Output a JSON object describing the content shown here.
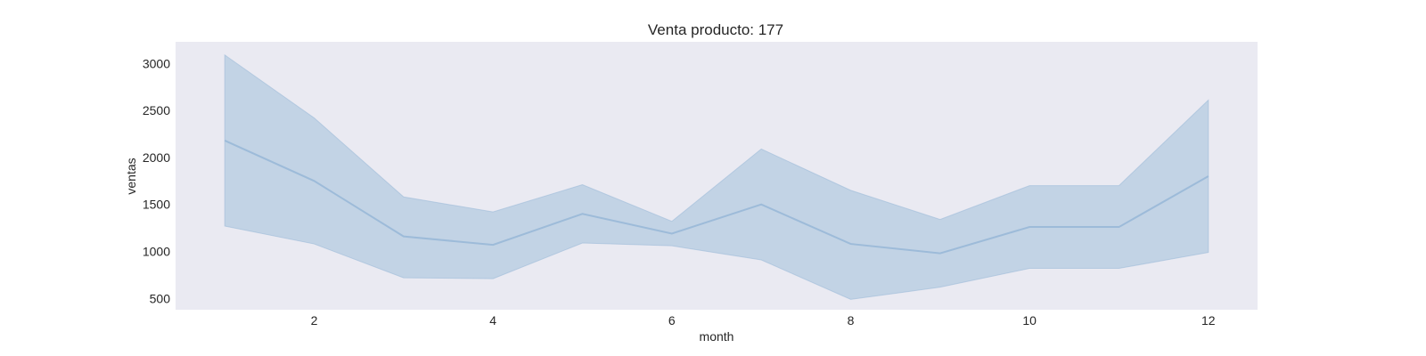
{
  "chart_data": {
    "type": "line",
    "title": "Venta producto: 177",
    "xlabel": "month",
    "ylabel": "ventas",
    "xlim": [
      0.45,
      12.55
    ],
    "ylim": [
      380,
      3230
    ],
    "xticks": [
      2,
      4,
      6,
      8,
      10,
      12
    ],
    "yticks": [
      500,
      1000,
      1500,
      2000,
      2500,
      3000
    ],
    "grid": false,
    "colors": {
      "plot_background": "#eaeaf2",
      "line": "#9dbbd9",
      "band": "#c2d3e5"
    },
    "series": [
      {
        "x": [
          1,
          2,
          3,
          4,
          5,
          6,
          7,
          8,
          9,
          10,
          11,
          12
        ],
        "values": [
          2180,
          1750,
          1160,
          1070,
          1400,
          1190,
          1500,
          1080,
          980,
          1260,
          1260,
          1800
        ],
        "lower": [
          1270,
          1080,
          720,
          710,
          1090,
          1060,
          910,
          490,
          620,
          820,
          820,
          990
        ],
        "upper": [
          3090,
          2420,
          1580,
          1420,
          1710,
          1320,
          2090,
          1650,
          1340,
          1700,
          1700,
          2610
        ]
      }
    ]
  }
}
